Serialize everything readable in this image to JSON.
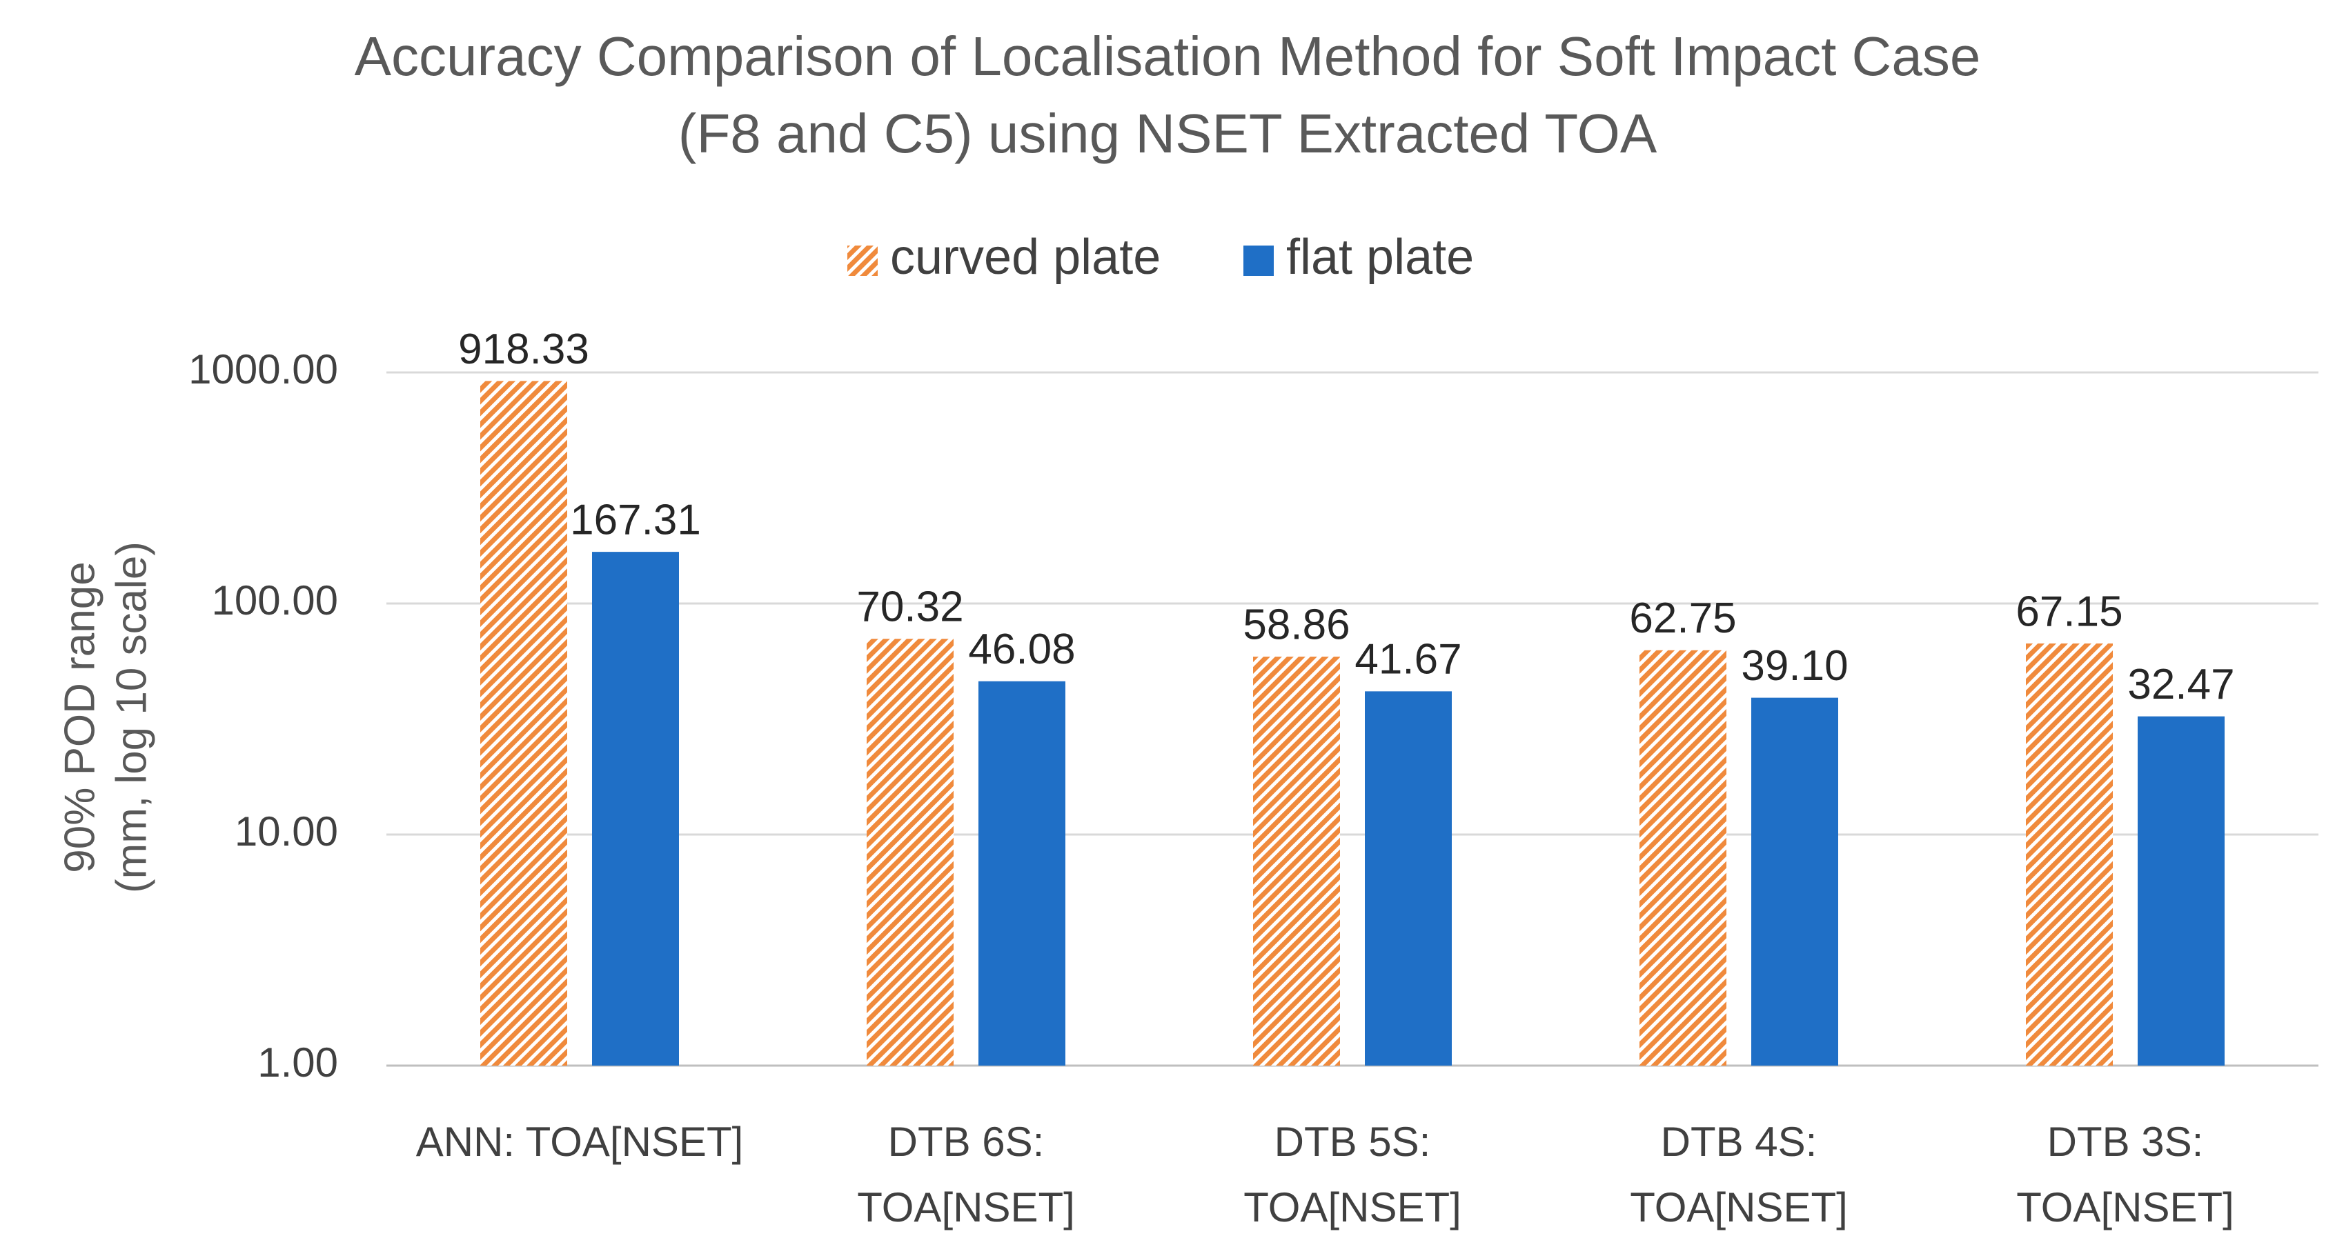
{
  "chart_data": {
    "type": "bar",
    "title": [
      "Accuracy Comparison of Localisation Method for Soft Impact Case",
      "(F8 and C5) using NSET Extracted TOA"
    ],
    "ylabel": [
      "90% POD range",
      "(mm, log 10 scale)"
    ],
    "xlabel": "",
    "yscale": "log10",
    "ylim": [
      1,
      1000
    ],
    "yticks": [
      1,
      10,
      100,
      1000
    ],
    "ytick_labels": [
      "1.00",
      "10.00",
      "100.00",
      "1000.00"
    ],
    "grid": true,
    "legend_position": "top-center",
    "categories": [
      [
        "ANN: TOA[NSET]"
      ],
      [
        "DTB 6S:",
        "TOA[NSET]"
      ],
      [
        "DTB 5S:",
        "TOA[NSET]"
      ],
      [
        "DTB 4S:",
        "TOA[NSET]"
      ],
      [
        "DTB 3S:",
        "TOA[NSET]"
      ]
    ],
    "series": [
      {
        "name": "curved plate",
        "color": "#f08a3c",
        "pattern": "diagonal-hatch",
        "values": [
          918.33,
          70.32,
          58.86,
          62.75,
          67.15
        ],
        "labels": [
          "918.33",
          "70.32",
          "58.86",
          "62.75",
          "67.15"
        ]
      },
      {
        "name": "flat plate",
        "color": "#1f6fc6",
        "pattern": "solid",
        "values": [
          167.31,
          46.08,
          41.67,
          39.1,
          32.47
        ],
        "labels": [
          "167.31",
          "46.08",
          "41.67",
          "39.10",
          "32.47"
        ]
      }
    ]
  }
}
